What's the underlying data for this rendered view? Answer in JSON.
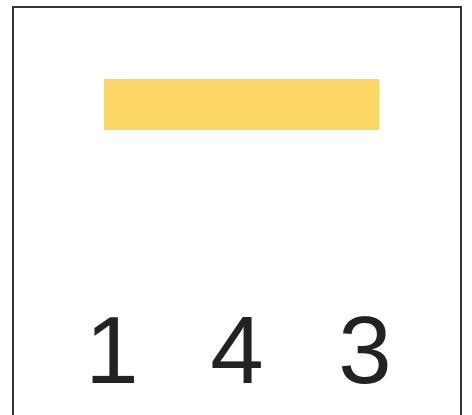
{
  "digits": [
    1,
    4,
    3
  ]
}
